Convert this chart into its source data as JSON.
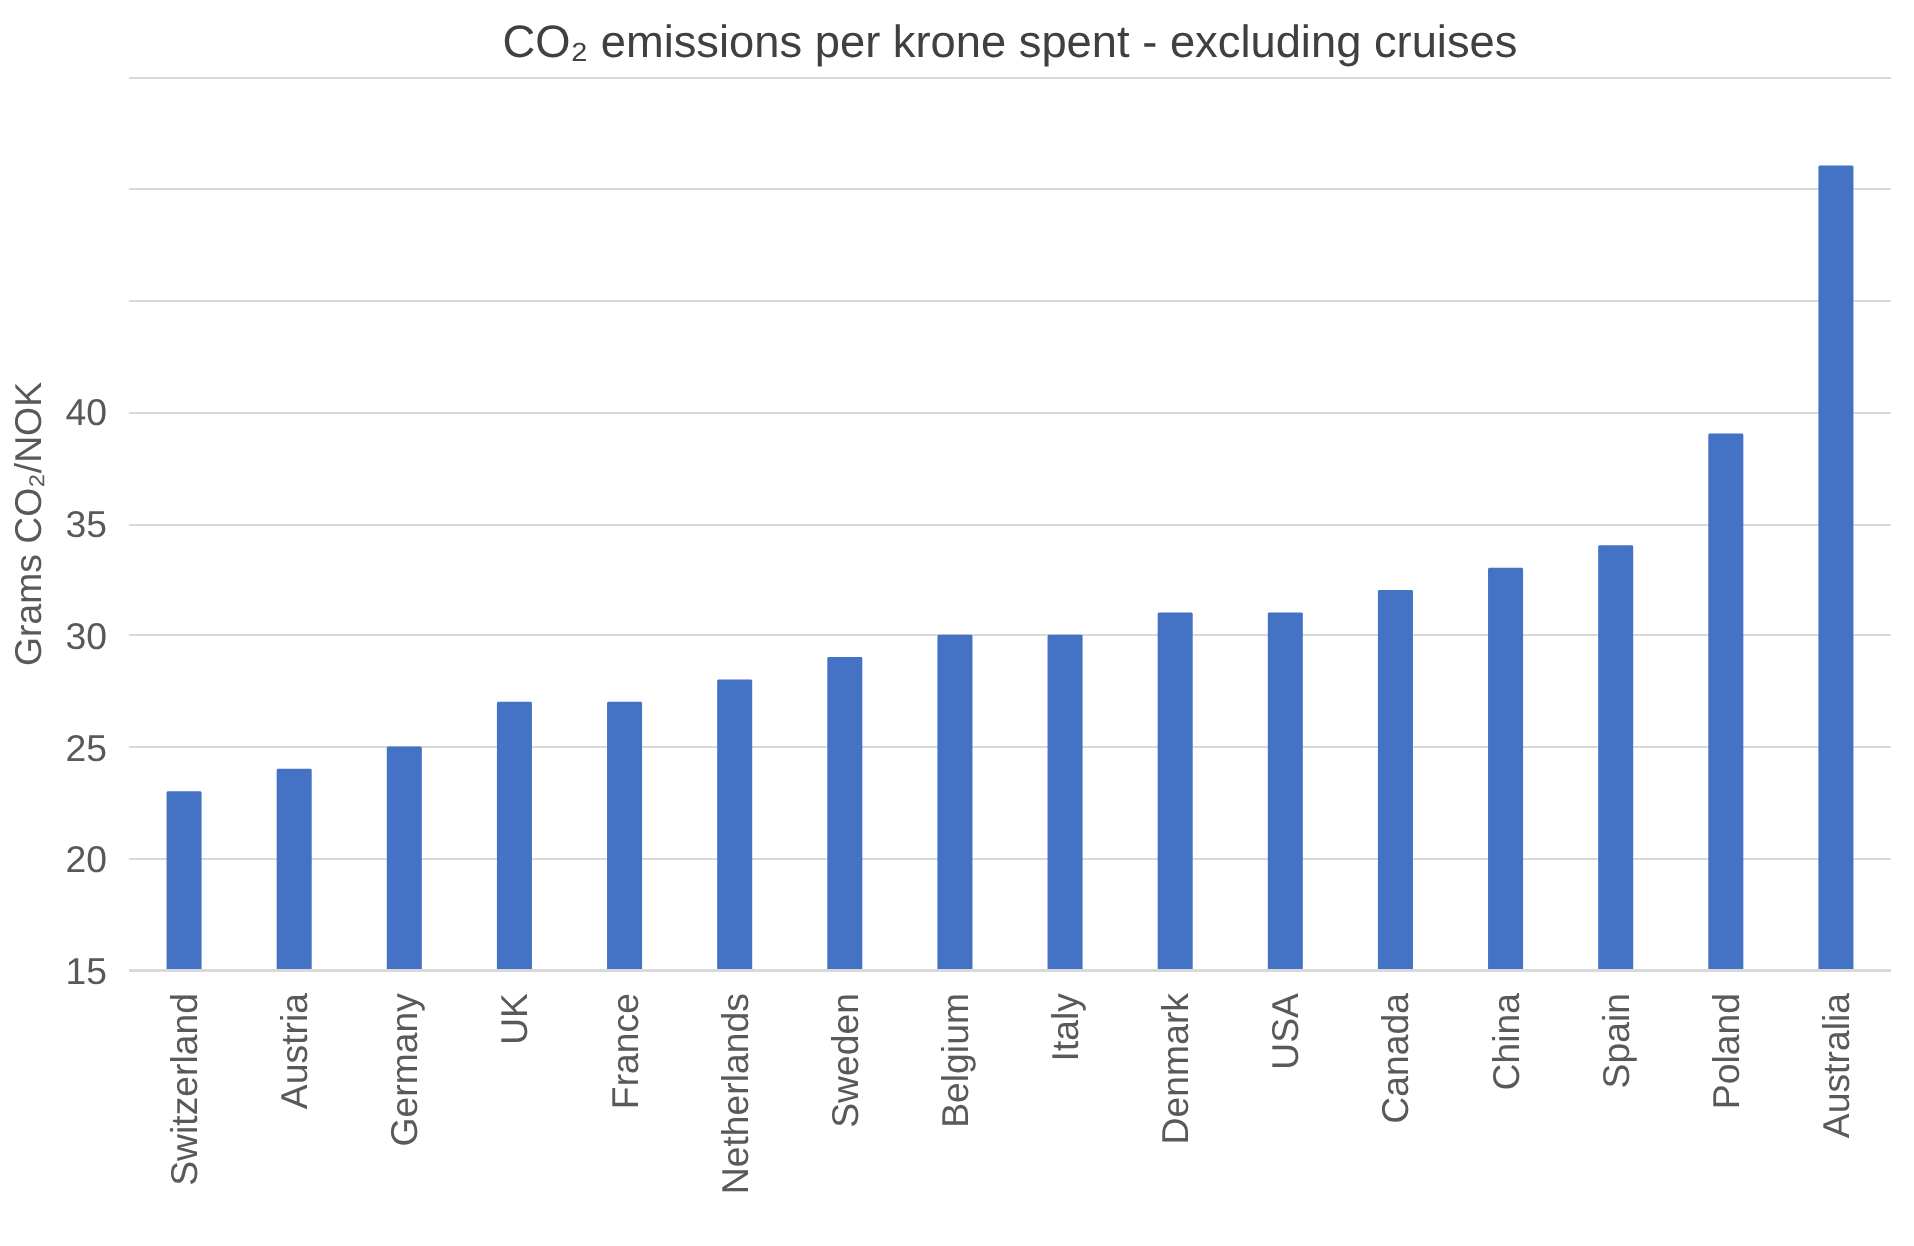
{
  "chart_data": {
    "type": "bar",
    "title": "CO₂ emissions per krone spent - excluding cruises",
    "ylabel": "Grams CO₂/NOK",
    "categories": [
      "Switzerland",
      "Austria",
      "Germany",
      "UK",
      "France",
      "Netherlands",
      "Sweden",
      "Belgium",
      "Italy",
      "Denmark",
      "USA",
      "Canada",
      "China",
      "Spain",
      "Poland",
      "Australia"
    ],
    "values": [
      23,
      24,
      25,
      27,
      27,
      28,
      29,
      30,
      30,
      31,
      31,
      32,
      33,
      34,
      39,
      51
    ],
    "color": "#4472c4",
    "ylim": [
      15,
      55
    ],
    "yticks": [
      15,
      20,
      25,
      30,
      35,
      40,
      {
        "value": 45,
        "label": null
      },
      {
        "value": 50,
        "label": null
      },
      {
        "value": 55,
        "label": null
      }
    ],
    "grid": "y"
  }
}
